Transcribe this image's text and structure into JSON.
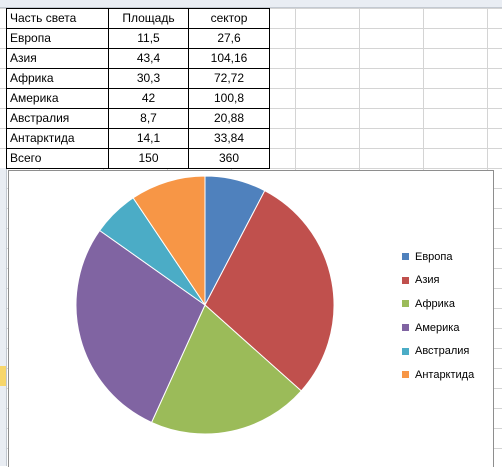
{
  "table": {
    "headers": [
      "Часть света",
      "Площадь",
      "сектор"
    ],
    "rows": [
      [
        "Европа",
        "11,5",
        "27,6"
      ],
      [
        "Азия",
        "43,4",
        "104,16"
      ],
      [
        "Африка",
        "30,3",
        "72,72"
      ],
      [
        "Америка",
        "42",
        "100,8"
      ],
      [
        "Австралия",
        "8,7",
        "20,88"
      ],
      [
        "Антарктида",
        "14,1",
        "33,84"
      ],
      [
        "Всего",
        "150",
        "360"
      ]
    ]
  },
  "chart_data": {
    "type": "pie",
    "categories": [
      "Европа",
      "Азия",
      "Африка",
      "Америка",
      "Австралия",
      "Антарктида"
    ],
    "values": [
      11.5,
      43.4,
      30.3,
      42,
      8.7,
      14.1
    ],
    "colors": [
      "#4f81bd",
      "#c0504d",
      "#9bbb59",
      "#8064a2",
      "#4bacc6",
      "#f79646"
    ],
    "legend_position": "right",
    "start": "top, clockwise"
  }
}
